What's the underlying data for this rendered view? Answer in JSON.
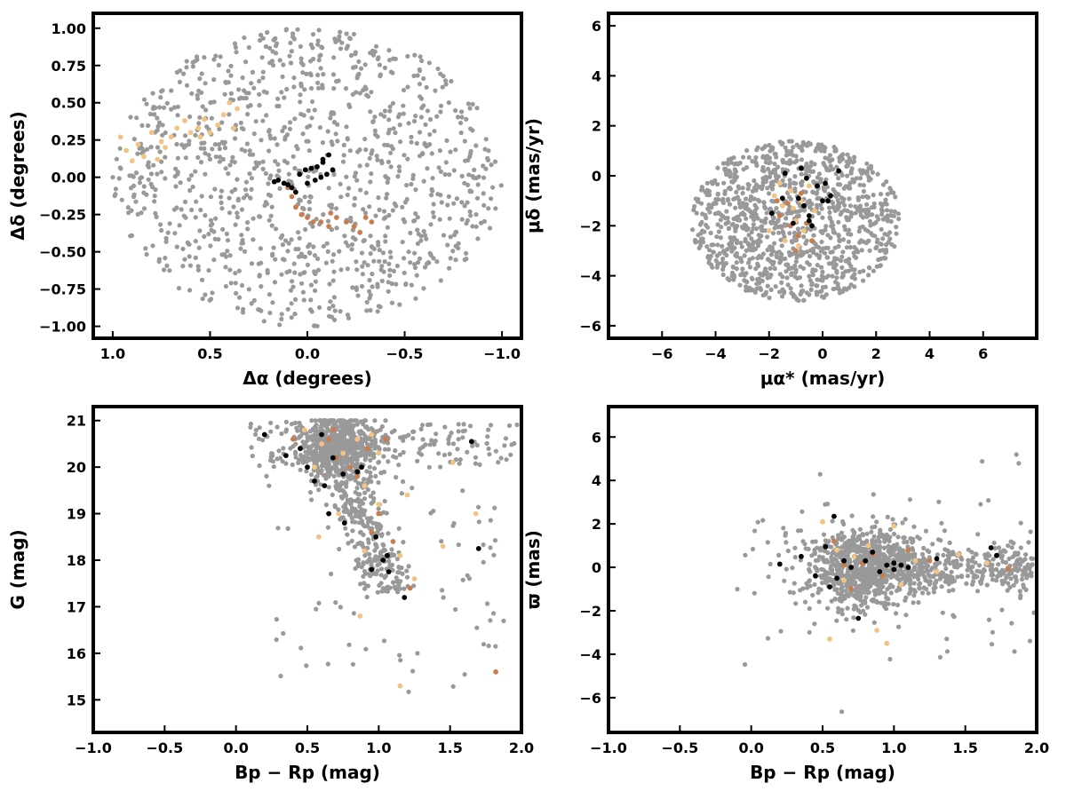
{
  "colors": {
    "field": "#999999",
    "orange_light": "#f3c383",
    "orange_dark": "#c77d4f",
    "black": "#000000"
  },
  "chart_data": [
    {
      "type": "scatter",
      "panel": "top-left",
      "xlabel": "Δα (degrees)",
      "ylabel": "Δδ (degrees)",
      "xlim": [
        1.1,
        -1.1
      ],
      "ylim": [
        -1.08,
        1.1
      ],
      "x_inverted": true,
      "xticks": [
        1.0,
        0.5,
        0.0,
        -0.5,
        -1.0
      ],
      "xtick_labels": [
        "1.0",
        "0.5",
        "0.0",
        "−0.5",
        "−1.0"
      ],
      "yticks": [
        -1.0,
        -0.75,
        -0.5,
        -0.25,
        0.0,
        0.25,
        0.5,
        0.75,
        1.0
      ],
      "ytick_labels": [
        "−1.00",
        "−0.75",
        "−0.50",
        "−0.25",
        "0.00",
        "0.25",
        "0.50",
        "0.75",
        "1.00"
      ],
      "field_distribution": {
        "shape": "ellipse",
        "cx": 0.0,
        "cy": 0.0,
        "rx": 1.0,
        "ry": 1.0,
        "count": 1100
      },
      "series": [
        {
          "role": "orange_light",
          "points": [
            [
              0.96,
              0.27
            ],
            [
              0.93,
              0.18
            ],
            [
              0.9,
              0.11
            ],
            [
              0.87,
              0.22
            ],
            [
              0.84,
              0.14
            ],
            [
              0.8,
              0.3
            ],
            [
              0.77,
              0.12
            ],
            [
              0.73,
              0.2
            ],
            [
              0.7,
              0.27
            ],
            [
              0.67,
              0.33
            ],
            [
              0.63,
              0.38
            ],
            [
              0.6,
              0.3
            ],
            [
              0.56,
              0.33
            ],
            [
              0.53,
              0.39
            ],
            [
              0.5,
              0.3
            ],
            [
              0.46,
              0.35
            ],
            [
              0.43,
              0.42
            ],
            [
              0.4,
              0.5
            ],
            [
              0.38,
              0.33
            ],
            [
              0.36,
              0.46
            ],
            [
              0.55,
              0.27
            ],
            [
              0.75,
              0.24
            ]
          ]
        },
        {
          "role": "orange_dark",
          "points": [
            [
              0.1,
              -0.07
            ],
            [
              0.08,
              -0.13
            ],
            [
              0.06,
              -0.2
            ],
            [
              0.03,
              -0.25
            ],
            [
              0.0,
              -0.27
            ],
            [
              -0.03,
              -0.3
            ],
            [
              -0.07,
              -0.3
            ],
            [
              -0.11,
              -0.33
            ],
            [
              -0.15,
              -0.27
            ],
            [
              -0.2,
              -0.3
            ],
            [
              -0.24,
              -0.33
            ],
            [
              -0.27,
              -0.37
            ],
            [
              -0.3,
              -0.27
            ],
            [
              -0.33,
              -0.3
            ],
            [
              -0.12,
              -0.24
            ]
          ]
        },
        {
          "role": "black",
          "points": [
            [
              0.17,
              -0.03
            ],
            [
              0.15,
              -0.02
            ],
            [
              0.12,
              -0.04
            ],
            [
              0.1,
              -0.05
            ],
            [
              0.08,
              -0.07
            ],
            [
              0.06,
              -0.1
            ],
            [
              0.04,
              0.02
            ],
            [
              0.01,
              0.05
            ],
            [
              -0.02,
              0.06
            ],
            [
              -0.05,
              0.07
            ],
            [
              -0.08,
              0.1
            ],
            [
              -0.11,
              0.15
            ],
            [
              -0.13,
              0.05
            ],
            [
              -0.1,
              0.02
            ],
            [
              -0.07,
              0.0
            ],
            [
              -0.04,
              -0.02
            ],
            [
              0.0,
              -0.04
            ],
            [
              -0.08,
              0.12
            ]
          ]
        }
      ]
    },
    {
      "type": "scatter",
      "panel": "top-right",
      "xlabel": "μα* (mas/yr)",
      "ylabel": "μδ (mas/yr)",
      "xlim": [
        -8,
        8
      ],
      "ylim": [
        -6.5,
        6.5
      ],
      "xticks": [
        -6,
        -4,
        -2,
        0,
        2,
        4,
        6
      ],
      "xtick_labels": [
        "−6",
        "−4",
        "−2",
        "0",
        "2",
        "4",
        "6"
      ],
      "yticks": [
        -6,
        -4,
        -2,
        0,
        2,
        4,
        6
      ],
      "ytick_labels": [
        "−6",
        "−4",
        "−2",
        "0",
        "2",
        "4",
        "6"
      ],
      "field_distribution": {
        "shape": "ellipse",
        "cx": -1.0,
        "cy": -1.8,
        "rx": 3.9,
        "ry": 3.2,
        "count": 1100
      },
      "series": [
        {
          "role": "orange_light",
          "points": [
            [
              -1.8,
              -0.8
            ],
            [
              -1.5,
              -1.2
            ],
            [
              -1.2,
              -0.6
            ],
            [
              -1.9,
              -1.5
            ],
            [
              -0.8,
              -1.0
            ],
            [
              -0.5,
              -0.4
            ],
            [
              -1.0,
              -1.8
            ],
            [
              -0.7,
              -2.2
            ],
            [
              -1.4,
              -2.6
            ],
            [
              -0.3,
              -1.4
            ],
            [
              -1.6,
              -0.3
            ],
            [
              -0.9,
              -2.8
            ],
            [
              -2.0,
              -2.2
            ],
            [
              -1.1,
              -1.3
            ]
          ]
        },
        {
          "role": "orange_dark",
          "points": [
            [
              -1.6,
              -1.6
            ],
            [
              -1.3,
              -1.1
            ],
            [
              -0.9,
              -2.4
            ],
            [
              -0.6,
              -1.9
            ],
            [
              -1.0,
              -3.0
            ],
            [
              -1.7,
              -1.0
            ],
            [
              -0.4,
              -2.6
            ],
            [
              -1.2,
              -2.0
            ],
            [
              -0.8,
              -0.7
            ]
          ]
        },
        {
          "role": "black",
          "points": [
            [
              -1.9,
              -1.5
            ],
            [
              -1.5,
              -0.9
            ],
            [
              -1.4,
              0.1
            ],
            [
              -0.9,
              -0.9
            ],
            [
              -0.8,
              0.3
            ],
            [
              -0.6,
              -0.1
            ],
            [
              -0.5,
              -1.6
            ],
            [
              -0.5,
              -1.8
            ],
            [
              -0.4,
              -2.0
            ],
            [
              -0.2,
              -0.4
            ],
            [
              0.0,
              -1.0
            ],
            [
              0.1,
              -0.3
            ],
            [
              0.2,
              -1.0
            ],
            [
              0.3,
              -0.8
            ],
            [
              0.6,
              0.2
            ],
            [
              -0.7,
              -1.2
            ],
            [
              -1.1,
              -1.9
            ]
          ]
        }
      ]
    },
    {
      "type": "scatter",
      "panel": "bottom-left",
      "xlabel": "Bp − Rp (mag)",
      "ylabel": "G (mag)",
      "xlim": [
        -1.0,
        2.0
      ],
      "ylim": [
        14.3,
        21.3
      ],
      "xticks": [
        -1.0,
        -0.5,
        0.0,
        0.5,
        1.0,
        1.5,
        2.0
      ],
      "xtick_labels": [
        "−1.0",
        "−0.5",
        "0.0",
        "0.5",
        "1.0",
        "1.5",
        "2.0"
      ],
      "yticks": [
        15,
        16,
        17,
        18,
        19,
        20,
        21
      ],
      "ytick_labels": [
        "15",
        "16",
        "17",
        "18",
        "19",
        "20",
        "21"
      ],
      "field_distribution": {
        "shape": "cmd",
        "count": 1200
      },
      "series": [
        {
          "role": "orange_light",
          "points": [
            [
              0.85,
              20.6
            ],
            [
              0.6,
              20.5
            ],
            [
              0.75,
              20.3
            ],
            [
              0.95,
              20.7
            ],
            [
              1.0,
              20.3
            ],
            [
              0.55,
              20.0
            ],
            [
              0.9,
              19.6
            ],
            [
              1.0,
              19.2
            ],
            [
              0.72,
              19.0
            ],
            [
              0.58,
              18.5
            ],
            [
              0.9,
              18.2
            ],
            [
              1.15,
              18.1
            ],
            [
              1.25,
              17.6
            ],
            [
              0.87,
              16.8
            ],
            [
              1.15,
              15.3
            ],
            [
              1.52,
              20.1
            ],
            [
              1.68,
              19.0
            ],
            [
              1.45,
              18.3
            ],
            [
              0.48,
              20.8
            ],
            [
              1.2,
              19.4
            ]
          ]
        },
        {
          "role": "orange_dark",
          "points": [
            [
              0.65,
              20.6
            ],
            [
              0.7,
              20.2
            ],
            [
              0.8,
              20.0
            ],
            [
              0.92,
              20.4
            ],
            [
              1.05,
              20.6
            ],
            [
              0.85,
              19.8
            ],
            [
              1.0,
              19.0
            ],
            [
              0.95,
              18.6
            ],
            [
              1.1,
              18.4
            ],
            [
              1.22,
              17.4
            ],
            [
              0.4,
              20.6
            ],
            [
              0.68,
              20.8
            ],
            [
              1.82,
              15.6
            ]
          ]
        },
        {
          "role": "black",
          "points": [
            [
              0.2,
              20.7
            ],
            [
              0.35,
              20.25
            ],
            [
              0.45,
              20.4
            ],
            [
              0.5,
              20.0
            ],
            [
              0.55,
              19.7
            ],
            [
              0.62,
              19.6
            ],
            [
              0.6,
              20.7
            ],
            [
              0.68,
              20.2
            ],
            [
              0.75,
              19.85
            ],
            [
              0.85,
              19.9
            ],
            [
              0.88,
              20.0
            ],
            [
              0.65,
              19.0
            ],
            [
              0.76,
              18.8
            ],
            [
              0.98,
              18.5
            ],
            [
              1.03,
              18.0
            ],
            [
              1.06,
              18.1
            ],
            [
              0.95,
              17.8
            ],
            [
              1.07,
              17.75
            ],
            [
              1.18,
              17.2
            ],
            [
              1.65,
              20.55
            ],
            [
              1.7,
              18.25
            ]
          ]
        }
      ]
    },
    {
      "type": "scatter",
      "panel": "bottom-right",
      "xlabel": "Bp − Rp (mag)",
      "ylabel": "ϖ (mas)",
      "xlim": [
        -1.0,
        2.0
      ],
      "ylim": [
        -7.6,
        7.4
      ],
      "xticks": [
        -1.0,
        -0.5,
        0.0,
        0.5,
        1.0,
        1.5,
        2.0
      ],
      "xtick_labels": [
        "−1.0",
        "−0.5",
        "0.0",
        "0.5",
        "1.0",
        "1.5",
        "2.0"
      ],
      "yticks": [
        -6,
        -4,
        -2,
        0,
        2,
        4,
        6
      ],
      "ytick_labels": [
        "−6",
        "−4",
        "−2",
        "0",
        "2",
        "4",
        "6"
      ],
      "field_distribution": {
        "shape": "parallax",
        "count": 1200
      },
      "series": [
        {
          "role": "orange_light",
          "points": [
            [
              0.5,
              2.1
            ],
            [
              0.55,
              -3.3
            ],
            [
              0.95,
              -3.5
            ],
            [
              0.88,
              -2.9
            ],
            [
              0.82,
              1.0
            ],
            [
              1.0,
              1.9
            ],
            [
              0.65,
              -0.6
            ],
            [
              0.72,
              0.5
            ],
            [
              1.15,
              0.3
            ],
            [
              1.45,
              0.6
            ],
            [
              1.65,
              0.2
            ],
            [
              1.3,
              -0.2
            ],
            [
              0.6,
              0.8
            ],
            [
              1.05,
              -0.8
            ]
          ]
        },
        {
          "role": "orange_dark",
          "points": [
            [
              0.58,
              1.2
            ],
            [
              0.7,
              -1.0
            ],
            [
              0.78,
              0.2
            ],
            [
              0.92,
              -0.4
            ],
            [
              1.1,
              0.8
            ],
            [
              0.85,
              0.6
            ],
            [
              1.8,
              -0.05
            ],
            [
              1.25,
              0.3
            ],
            [
              0.65,
              0.1
            ]
          ]
        },
        {
          "role": "black",
          "points": [
            [
              0.2,
              0.15
            ],
            [
              0.35,
              0.5
            ],
            [
              0.45,
              -0.4
            ],
            [
              0.55,
              -0.9
            ],
            [
              0.58,
              2.35
            ],
            [
              0.6,
              -0.5
            ],
            [
              0.65,
              0.3
            ],
            [
              0.7,
              0.0
            ],
            [
              0.75,
              -2.35
            ],
            [
              0.8,
              0.3
            ],
            [
              0.85,
              0.7
            ],
            [
              0.9,
              -0.2
            ],
            [
              0.95,
              0.1
            ],
            [
              1.0,
              0.2
            ],
            [
              1.05,
              0.1
            ],
            [
              1.1,
              0.0
            ],
            [
              1.0,
              -0.1
            ],
            [
              1.68,
              0.9
            ],
            [
              1.72,
              0.55
            ],
            [
              0.52,
              0.95
            ],
            [
              1.3,
              0.4
            ]
          ]
        }
      ]
    }
  ]
}
